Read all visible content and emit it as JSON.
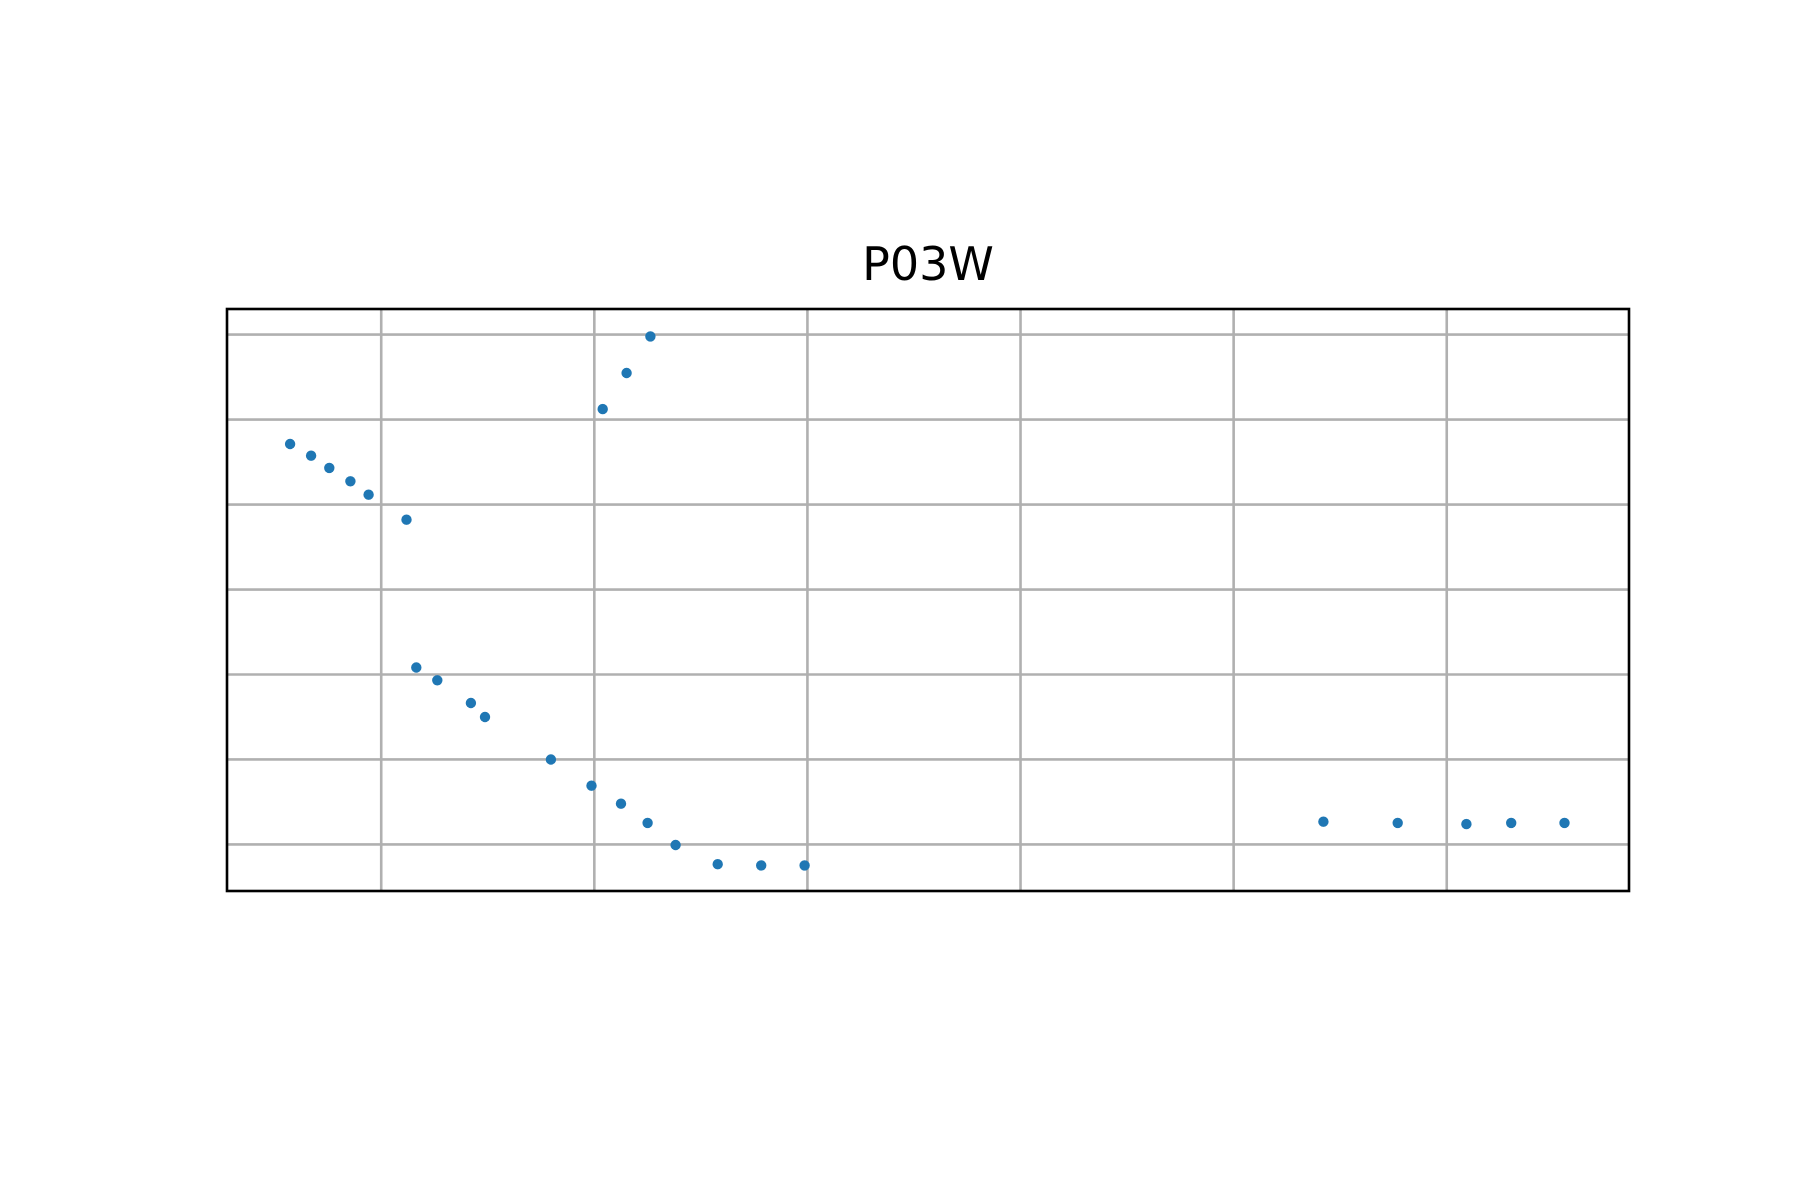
{
  "chart_data": {
    "type": "scatter",
    "title": "P03W",
    "xlabel": "",
    "ylabel": "",
    "xlim": [
      0,
      1000
    ],
    "ylim": [
      0,
      1000
    ],
    "grid": true,
    "x_gridlines": [
      110,
      262,
      414,
      566,
      718,
      870
    ],
    "y_gridlines": [
      80,
      226,
      372,
      518,
      664,
      810,
      956
    ],
    "marker_color": "#1f77b4",
    "series": [
      {
        "color": "#1f77b4",
        "points": [
          {
            "x": 45,
            "y": 768
          },
          {
            "x": 60,
            "y": 748
          },
          {
            "x": 73,
            "y": 727
          },
          {
            "x": 88,
            "y": 704
          },
          {
            "x": 101,
            "y": 681
          },
          {
            "x": 128,
            "y": 638
          },
          {
            "x": 135,
            "y": 384
          },
          {
            "x": 150,
            "y": 362
          },
          {
            "x": 174,
            "y": 323
          },
          {
            "x": 184,
            "y": 299
          },
          {
            "x": 231,
            "y": 226
          },
          {
            "x": 260,
            "y": 181
          },
          {
            "x": 281,
            "y": 150
          },
          {
            "x": 300,
            "y": 117
          },
          {
            "x": 320,
            "y": 79
          },
          {
            "x": 350,
            "y": 46
          },
          {
            "x": 381,
            "y": 44
          },
          {
            "x": 412,
            "y": 44
          },
          {
            "x": 268,
            "y": 828
          },
          {
            "x": 285,
            "y": 890
          },
          {
            "x": 302,
            "y": 953
          },
          {
            "x": 782,
            "y": 119
          },
          {
            "x": 835,
            "y": 117
          },
          {
            "x": 884,
            "y": 115
          },
          {
            "x": 916,
            "y": 117
          },
          {
            "x": 954,
            "y": 117
          }
        ]
      }
    ]
  }
}
